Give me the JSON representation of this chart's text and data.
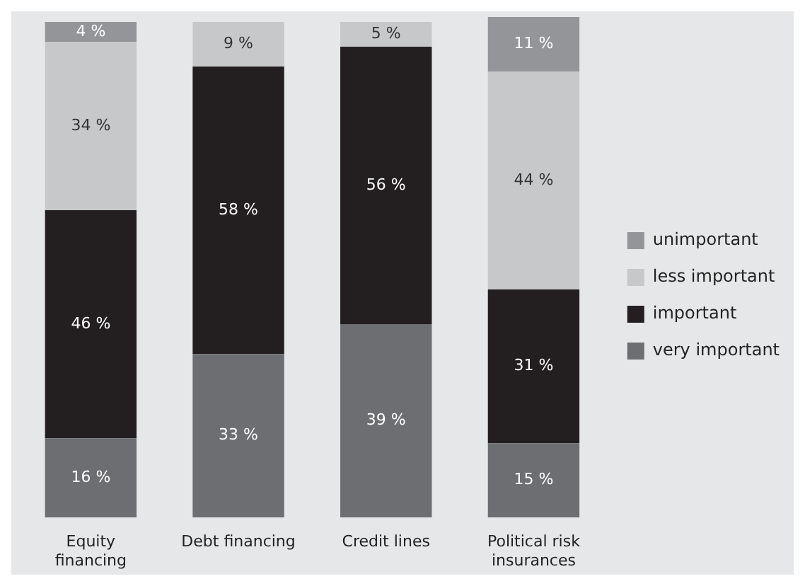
{
  "chart_data": {
    "type": "bar",
    "stacked": true,
    "legend": "right",
    "categories": [
      "Equity financing",
      "Debt financing",
      "Credit lines",
      "Political risk insurances"
    ],
    "series": [
      {
        "name": "very important",
        "color": "#6d6e71",
        "values": [
          16,
          33,
          39,
          15
        ],
        "value_labels": [
          "16 %",
          "33 %",
          "39 %",
          "15 %"
        ]
      },
      {
        "name": "important",
        "color": "#231f20",
        "values": [
          46,
          58,
          56,
          31
        ],
        "value_labels": [
          "46 %",
          "58 %",
          "56 %",
          "31 %"
        ]
      },
      {
        "name": "less important",
        "color": "#c7c8ca",
        "values": [
          34,
          9,
          5,
          44
        ],
        "value_labels": [
          "34 %",
          "9 %",
          "5 %",
          "44 %"
        ]
      },
      {
        "name": "unimportant",
        "color": "#939598",
        "values": [
          4,
          null,
          null,
          11
        ],
        "value_labels": [
          "4 %",
          null,
          null,
          "11 %"
        ]
      }
    ]
  }
}
